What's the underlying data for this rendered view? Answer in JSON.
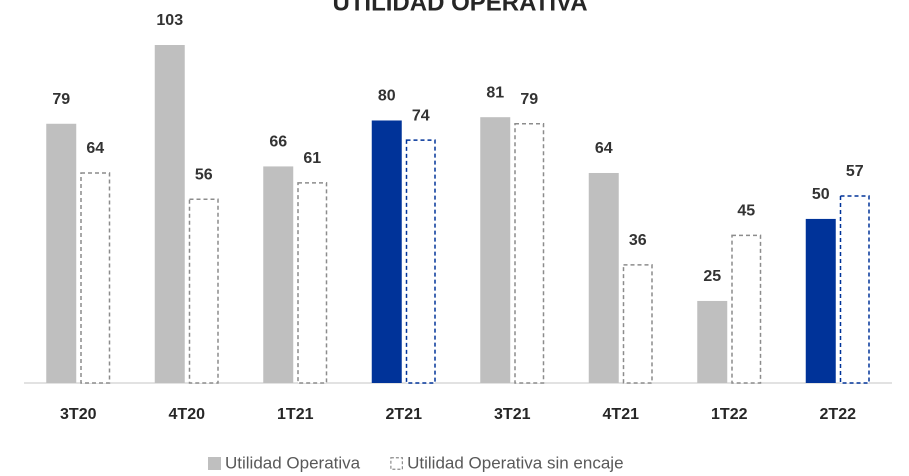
{
  "chart_data": {
    "type": "bar",
    "title": "UTILIDAD OPERATIVA",
    "categories": [
      "3T20",
      "4T20",
      "1T21",
      "2T21",
      "3T21",
      "4T21",
      "1T22",
      "2T22"
    ],
    "series": [
      {
        "name": "Utilidad Operativa",
        "style": "solid",
        "colors": [
          "#bfbfbf",
          "#bfbfbf",
          "#bfbfbf",
          "#003399",
          "#bfbfbf",
          "#bfbfbf",
          "#bfbfbf",
          "#003399"
        ],
        "values": [
          79,
          103,
          66,
          80,
          81,
          64,
          25,
          50
        ]
      },
      {
        "name": "Utilidad Operativa sin encaje",
        "style": "dashed",
        "colors": [
          "#8c8c8c",
          "#8c8c8c",
          "#8c8c8c",
          "#003399",
          "#8c8c8c",
          "#8c8c8c",
          "#8c8c8c",
          "#003399"
        ],
        "values": [
          64,
          56,
          61,
          74,
          79,
          36,
          45,
          57
        ]
      }
    ],
    "legend": "bottom"
  }
}
